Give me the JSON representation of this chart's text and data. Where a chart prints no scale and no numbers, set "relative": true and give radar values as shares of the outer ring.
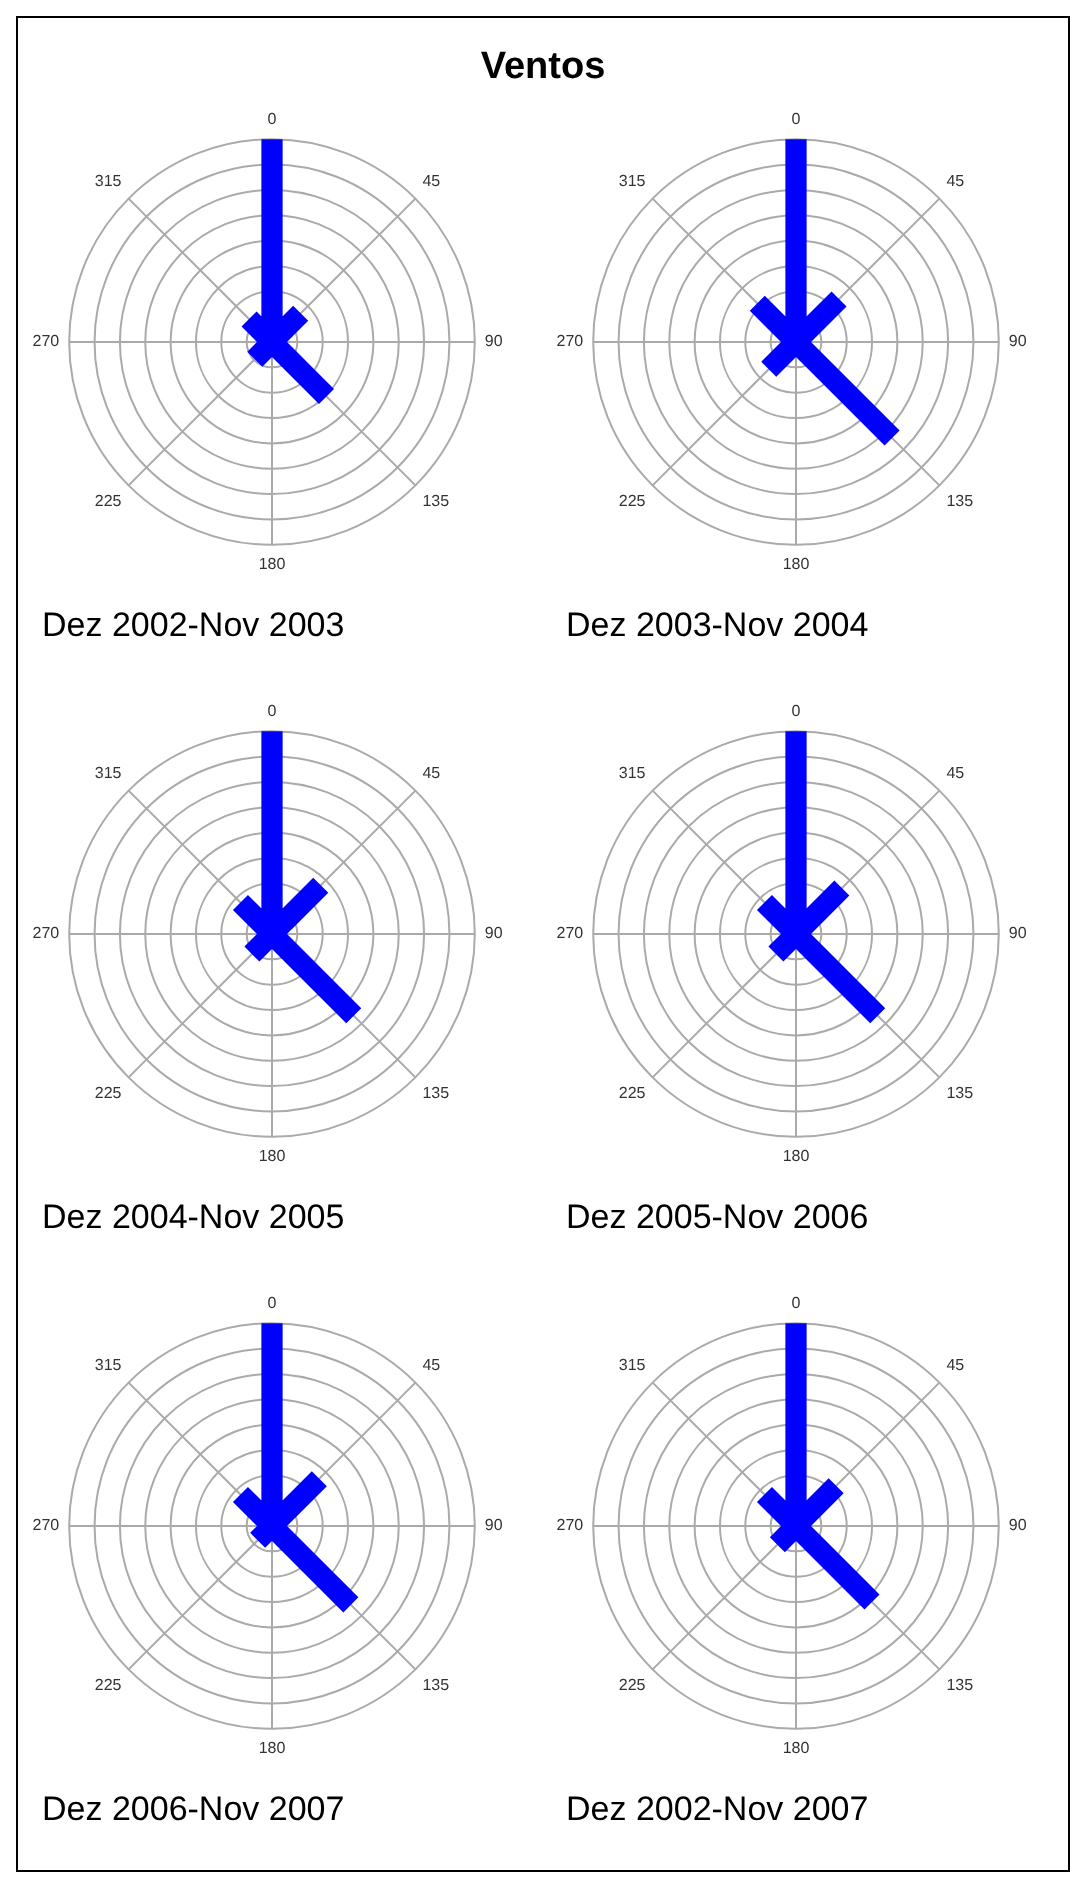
{
  "chart_data": [
    {
      "type": "radar",
      "title": "Dez 2002-Nov 2003",
      "annotations": [
        "Ventos"
      ],
      "relative": true,
      "grid": true,
      "categories": [
        "0",
        "45",
        "90",
        "135",
        "180",
        "225",
        "270",
        "315"
      ],
      "series": [
        {
          "color": "#0000ff",
          "values": [
            1,
            0.2,
            0,
            0.38,
            0,
            0.12,
            0,
            0.16
          ]
        }
      ]
    },
    {
      "type": "radar",
      "title": "Dez 2003-Nov 2004",
      "relative": true,
      "grid": true,
      "categories": [
        "0",
        "45",
        "90",
        "135",
        "180",
        "225",
        "270",
        "315"
      ],
      "series": [
        {
          "color": "#0000ff",
          "values": [
            1,
            0.3,
            0,
            0.67,
            0,
            0.19,
            0,
            0.27
          ]
        }
      ]
    },
    {
      "type": "radar",
      "title": "Dez 2004-Nov 2005",
      "relative": true,
      "grid": true,
      "categories": [
        "0",
        "45",
        "90",
        "135",
        "180",
        "225",
        "270",
        "315"
      ],
      "series": [
        {
          "color": "#0000ff",
          "values": [
            1,
            0.34,
            0,
            0.57,
            0,
            0.14,
            0,
            0.22
          ]
        }
      ]
    },
    {
      "type": "radar",
      "title": "Dez 2005-Nov 2006",
      "relative": true,
      "grid": true,
      "categories": [
        "0",
        "45",
        "90",
        "135",
        "180",
        "225",
        "270",
        "315"
      ],
      "series": [
        {
          "color": "#0000ff",
          "values": [
            1,
            0.32,
            0,
            0.57,
            0,
            0.14,
            0,
            0.22
          ]
        }
      ]
    },
    {
      "type": "radar",
      "title": "Dez 2006-Nov 2007",
      "relative": true,
      "grid": true,
      "categories": [
        "0",
        "45",
        "90",
        "135",
        "180",
        "225",
        "270",
        "315"
      ],
      "series": [
        {
          "color": "#0000ff",
          "values": [
            1,
            0.33,
            0,
            0.55,
            0,
            0.1,
            0,
            0.22
          ]
        }
      ]
    },
    {
      "type": "radar",
      "title": "Dez 2002-Nov 2007",
      "relative": true,
      "grid": true,
      "categories": [
        "0",
        "45",
        "90",
        "135",
        "180",
        "225",
        "270",
        "315"
      ],
      "series": [
        {
          "color": "#0000ff",
          "values": [
            1,
            0.28,
            0,
            0.53,
            0,
            0.13,
            0,
            0.22
          ]
        }
      ]
    }
  ]
}
